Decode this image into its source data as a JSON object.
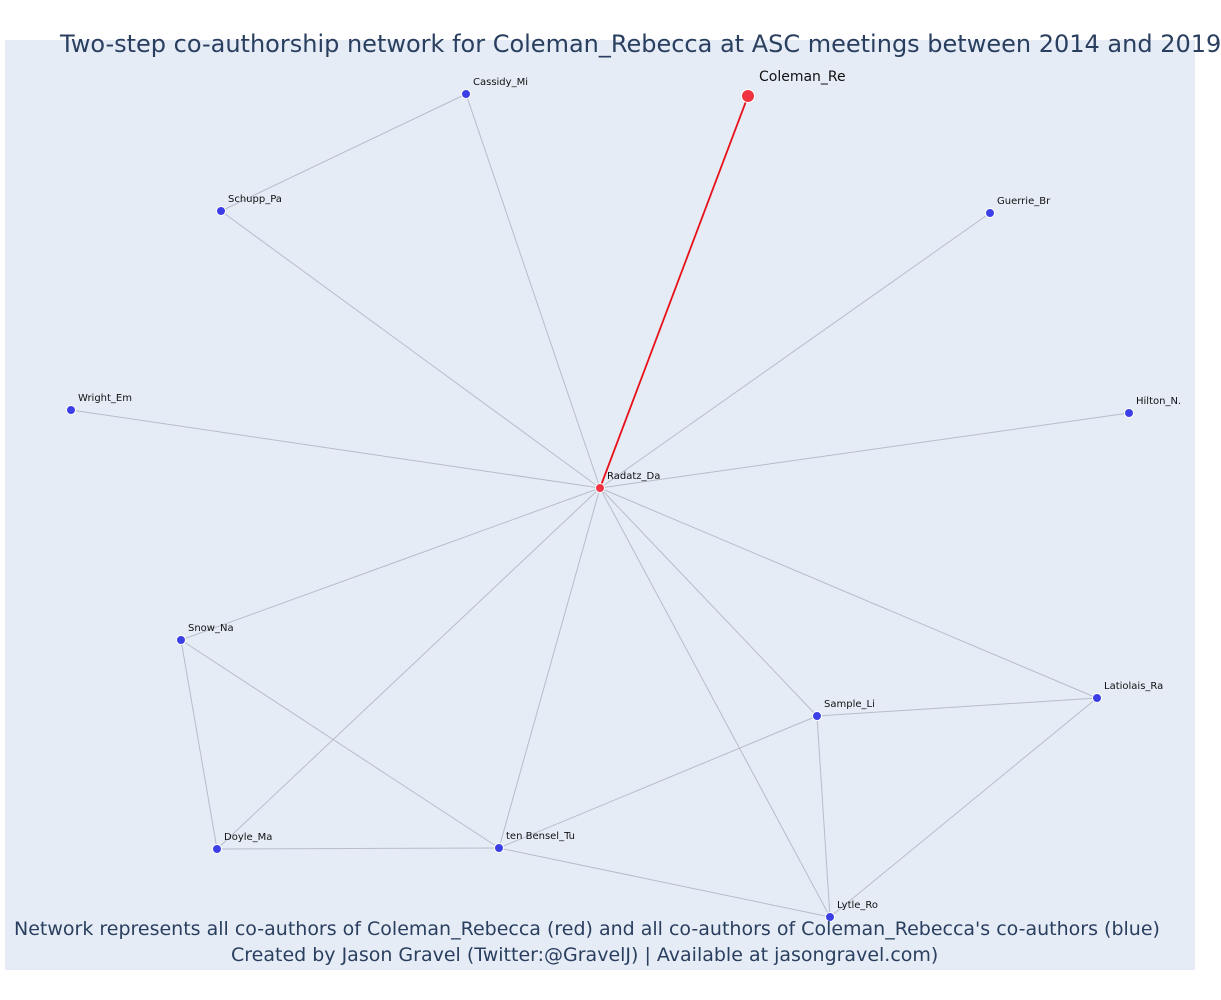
{
  "title": "Two-step co-authorship network for Coleman_Rebecca at ASC meetings between 2014 and 2019",
  "caption_line1": "Network represents all co-authors of Coleman_Rebecca (red) and all co-authors of Coleman_Rebecca's co-authors (blue)",
  "caption_line2": "Created by Jason Gravel (Twitter:@GravelJ) | Available at jasongravel.com)",
  "colors": {
    "background": "#e5ecf6",
    "focal": "#ef3340",
    "coauthor": "#ef3340",
    "second_step": "#3c3ee6",
    "focal_edge": "#e8111a",
    "edge": "#b8bccc"
  },
  "nodes": [
    {
      "id": "Coleman_Re",
      "label": "Coleman_Re",
      "group": "focal"
    },
    {
      "id": "Radatz_Da",
      "label": "Radatz_Da",
      "group": "coauthor"
    },
    {
      "id": "Cassidy_Mi",
      "label": "Cassidy_Mi",
      "group": "second_step"
    },
    {
      "id": "Schupp_Pa",
      "label": "Schupp_Pa",
      "group": "second_step"
    },
    {
      "id": "Guerrie_Br",
      "label": "Guerrie_Br",
      "group": "second_step"
    },
    {
      "id": "Wright_Em",
      "label": "Wright_Em",
      "group": "second_step"
    },
    {
      "id": "Hilton_N.",
      "label": "Hilton_N.",
      "group": "second_step"
    },
    {
      "id": "Snow_Na",
      "label": "Snow_Na",
      "group": "second_step"
    },
    {
      "id": "Latiolais_Ra",
      "label": "Latiolais_Ra",
      "group": "second_step"
    },
    {
      "id": "Sample_Li",
      "label": "Sample_Li",
      "group": "second_step"
    },
    {
      "id": "Doyle_Ma",
      "label": "Doyle_Ma",
      "group": "second_step"
    },
    {
      "id": "ten Bensel_Tu",
      "label": "ten Bensel_Tu",
      "group": "second_step"
    },
    {
      "id": "Lytle_Ro",
      "label": "Lytle_Ro",
      "group": "second_step"
    }
  ],
  "edges": [
    [
      "Coleman_Re",
      "Radatz_Da"
    ],
    [
      "Cassidy_Mi",
      "Schupp_Pa"
    ],
    [
      "Cassidy_Mi",
      "Radatz_Da"
    ],
    [
      "Schupp_Pa",
      "Radatz_Da"
    ],
    [
      "Guerrie_Br",
      "Radatz_Da"
    ],
    [
      "Wright_Em",
      "Radatz_Da"
    ],
    [
      "Hilton_N.",
      "Radatz_Da"
    ],
    [
      "Snow_Na",
      "Radatz_Da"
    ],
    [
      "Doyle_Ma",
      "Radatz_Da"
    ],
    [
      "ten Bensel_Tu",
      "Radatz_Da"
    ],
    [
      "Lytle_Ro",
      "Radatz_Da"
    ],
    [
      "Sample_Li",
      "Radatz_Da"
    ],
    [
      "Latiolais_Ra",
      "Radatz_Da"
    ],
    [
      "Snow_Na",
      "Doyle_Ma"
    ],
    [
      "Snow_Na",
      "ten Bensel_Tu"
    ],
    [
      "Doyle_Ma",
      "ten Bensel_Tu"
    ],
    [
      "ten Bensel_Tu",
      "Sample_Li"
    ],
    [
      "ten Bensel_Tu",
      "Lytle_Ro"
    ],
    [
      "Sample_Li",
      "Latiolais_Ra"
    ],
    [
      "Sample_Li",
      "Lytle_Ro"
    ],
    [
      "Latiolais_Ra",
      "Lytle_Ro"
    ]
  ]
}
